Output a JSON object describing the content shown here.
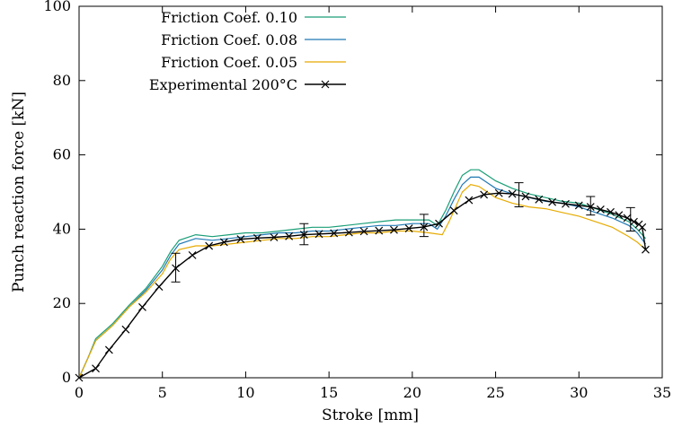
{
  "chart_data": {
    "type": "line",
    "xlabel": "Stroke [mm]",
    "ylabel": "Punch reaction force [kN]",
    "xlim": [
      0,
      35
    ],
    "ylim": [
      0,
      100
    ],
    "xticks": [
      0,
      5,
      10,
      15,
      20,
      25,
      30,
      35
    ],
    "yticks": [
      0,
      20,
      40,
      60,
      80,
      100
    ],
    "grid": false,
    "legend_position": "top-left",
    "series": [
      {
        "name": "Friction Coef. 0.10",
        "color": "#1a9e77",
        "marker": "none",
        "x": [
          0,
          0.5,
          1,
          2,
          3,
          4,
          5,
          5.5,
          6,
          7,
          8,
          9,
          10,
          11,
          12,
          13,
          14,
          15,
          16,
          17,
          18,
          19,
          20,
          21,
          21.5,
          22,
          22.5,
          23,
          23.5,
          24,
          24.5,
          25,
          26,
          27,
          28,
          29,
          30,
          31,
          32,
          33,
          33.5,
          34
        ],
        "y": [
          0,
          5,
          10.5,
          14.5,
          19.5,
          24,
          30,
          34,
          37,
          38.5,
          38,
          38.5,
          39,
          39,
          39.5,
          40,
          40.5,
          40.5,
          41,
          41.5,
          42,
          42.5,
          42.5,
          42.5,
          41,
          45,
          50,
          54.5,
          56,
          56,
          54.5,
          53,
          51,
          49.5,
          48.5,
          47.5,
          47,
          45.5,
          44,
          42,
          40,
          37.5
        ]
      },
      {
        "name": "Friction Coef. 0.08",
        "color": "#1f78b4",
        "marker": "none",
        "x": [
          0,
          0.5,
          1,
          2,
          3,
          4,
          5,
          5.5,
          6,
          7,
          8,
          9,
          10,
          11,
          12,
          13,
          14,
          15,
          16,
          17,
          18,
          19,
          20,
          21,
          21.5,
          22,
          22.5,
          23,
          23.5,
          24,
          24.5,
          25,
          26,
          27,
          28,
          29,
          30,
          31,
          32,
          33,
          33.5,
          34
        ],
        "y": [
          0,
          5,
          10,
          14,
          19,
          23.5,
          29,
          33,
          36,
          37.5,
          37,
          37.5,
          38,
          38.5,
          39,
          39,
          39.5,
          39.5,
          40,
          40.5,
          41,
          41,
          41.5,
          41.5,
          40,
          43.5,
          48,
          52,
          54,
          54,
          52.5,
          51,
          49.5,
          48.5,
          47.5,
          47,
          46,
          44.5,
          43,
          41,
          39,
          36
        ]
      },
      {
        "name": "Friction Coef. 0.05",
        "color": "#e6ab02",
        "marker": "none",
        "x": [
          0,
          0.5,
          1,
          2,
          3,
          4,
          5,
          5.5,
          6,
          7,
          8,
          9,
          10,
          11,
          12,
          13,
          14,
          15,
          16,
          17,
          18,
          19,
          20,
          21,
          21.8,
          22.2,
          22.6,
          23,
          23.5,
          24,
          24.5,
          25,
          26,
          27,
          28,
          29,
          30,
          31,
          32,
          33,
          33.5,
          34
        ],
        "y": [
          0,
          5,
          10,
          14,
          19,
          23,
          28,
          32,
          34.5,
          35.5,
          35.5,
          36,
          36.5,
          37,
          37.5,
          37.5,
          38,
          38,
          38.5,
          39,
          39,
          39.5,
          39.5,
          39,
          38.5,
          42,
          46,
          50,
          52,
          51.5,
          50,
          48.5,
          47,
          46,
          45.5,
          44.5,
          43.5,
          42,
          40.5,
          38,
          36.5,
          34.5
        ]
      },
      {
        "name": "Experimental 200°C",
        "color": "#000000",
        "marker": "x",
        "x": [
          0,
          1,
          1.8,
          2.8,
          3.8,
          4.8,
          5.8,
          6.8,
          7.8,
          8.7,
          9.7,
          10.7,
          11.7,
          12.6,
          13.5,
          14.4,
          15.3,
          16.2,
          17.1,
          18.0,
          18.9,
          19.8,
          20.7,
          21.6,
          22.5,
          23.4,
          24.3,
          25.2,
          26.0,
          26.8,
          27.6,
          28.4,
          29.2,
          30.0,
          30.7,
          31.3,
          31.9,
          32.4,
          32.9,
          33.3,
          33.6,
          33.8,
          34.0
        ],
        "y": [
          0,
          2.5,
          7.5,
          13,
          19,
          24.5,
          29.5,
          33,
          35.5,
          36.5,
          37.3,
          37.6,
          37.8,
          38.1,
          38.5,
          38.7,
          38.9,
          39.1,
          39.4,
          39.6,
          39.8,
          40.2,
          40.6,
          41.5,
          45,
          47.8,
          49.3,
          49.7,
          49.5,
          48.8,
          48,
          47.3,
          46.8,
          46.4,
          46,
          45.3,
          44.6,
          43.8,
          43,
          42,
          41.3,
          40.5,
          34.5
        ],
        "error_bars": [
          {
            "x": 5.8,
            "y": 29.5,
            "lo": 25.8,
            "hi": 33.5
          },
          {
            "x": 13.5,
            "y": 38.5,
            "lo": 35.8,
            "hi": 41.5
          },
          {
            "x": 20.7,
            "y": 40.6,
            "lo": 38.0,
            "hi": 44.0
          },
          {
            "x": 26.4,
            "y": 49.3,
            "lo": 46.0,
            "hi": 52.5
          },
          {
            "x": 30.7,
            "y": 46.0,
            "lo": 43.8,
            "hi": 48.8
          },
          {
            "x": 33.1,
            "y": 42.5,
            "lo": 39.5,
            "hi": 45.8
          }
        ]
      }
    ]
  }
}
